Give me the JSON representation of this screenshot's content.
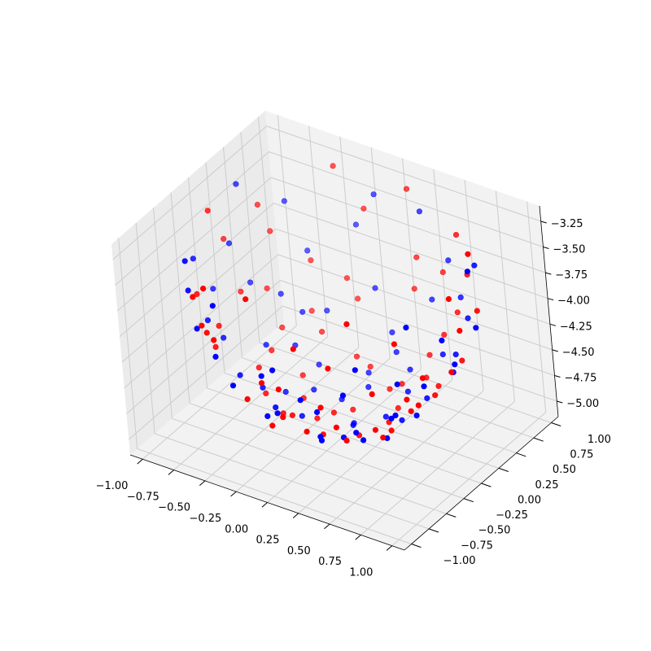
{
  "chart_data": {
    "type": "scatter",
    "title": "",
    "xlabel": "",
    "ylabel": "",
    "zlabel": "",
    "xlim": [
      -1.1,
      1.1
    ],
    "ylim": [
      -1.1,
      1.1
    ],
    "zlim": [
      -5.15,
      -3.1
    ],
    "x_ticks": [
      -1.0,
      -0.75,
      -0.5,
      -0.25,
      0.0,
      0.25,
      0.5,
      0.75,
      1.0
    ],
    "y_ticks": [
      -1.0,
      -0.75,
      -0.5,
      -0.25,
      0.0,
      0.25,
      0.5,
      0.75,
      1.0
    ],
    "z_ticks": [
      -5.0,
      -4.75,
      -4.5,
      -4.25,
      -4.0,
      -3.75,
      -3.5,
      -3.25
    ],
    "x_tick_labels": [
      "−1.00",
      "−0.75",
      "−0.50",
      "−0.25",
      "0.00",
      "0.25",
      "0.50",
      "0.75",
      "1.00"
    ],
    "y_tick_labels": [
      "−1.00",
      "−0.75",
      "−0.50",
      "−0.25",
      "0.00",
      "0.25",
      "0.50",
      "0.75",
      "1.00"
    ],
    "z_tick_labels": [
      "−5.00",
      "−4.75",
      "−4.50",
      "−4.25",
      "−4.00",
      "−3.75",
      "−3.50",
      "−3.25"
    ],
    "grid": true,
    "colors": {
      "pane": "#f2f2f2",
      "pane_side": "#ebebeb",
      "grid": "#cccccc",
      "series_a": "#0000ff",
      "series_b": "#ff0000"
    },
    "series": [
      {
        "color": "#0000ff",
        "points": [
          [
            0.12,
            -0.06,
            -4.96
          ],
          [
            0.46,
            -0.17,
            -4.88
          ],
          [
            -0.31,
            0.15,
            -4.92
          ],
          [
            -0.05,
            0.48,
            -4.84
          ],
          [
            0.33,
            0.37,
            -4.8
          ],
          [
            -0.47,
            -0.27,
            -4.72
          ],
          [
            0.64,
            -0.04,
            -4.66
          ],
          [
            -0.24,
            -0.61,
            -4.7
          ],
          [
            0.21,
            -0.64,
            -4.73
          ],
          [
            -0.66,
            0.13,
            -4.62
          ],
          [
            0.03,
            0.71,
            -4.55
          ],
          [
            0.54,
            0.54,
            -4.45
          ],
          [
            -0.56,
            0.49,
            -4.47
          ],
          [
            0.77,
            0.29,
            -4.38
          ],
          [
            -0.79,
            -0.22,
            -4.4
          ],
          [
            0.69,
            -0.46,
            -4.42
          ],
          [
            -0.39,
            -0.79,
            -4.36
          ],
          [
            0.31,
            -0.83,
            -4.3
          ],
          [
            -0.87,
            0.33,
            -4.22
          ],
          [
            0.29,
            0.86,
            -4.21
          ],
          [
            0.93,
            0.06,
            -4.1
          ],
          [
            -0.94,
            -0.06,
            -4.08
          ],
          [
            0.58,
            0.78,
            -4.02
          ],
          [
            -0.63,
            0.74,
            -4.05
          ],
          [
            0.82,
            -0.55,
            -3.98
          ],
          [
            -0.71,
            -0.69,
            -4.0
          ],
          [
            -0.05,
            -0.95,
            -4.03
          ],
          [
            0.97,
            0.32,
            -3.88
          ],
          [
            -0.98,
            0.27,
            -3.85
          ],
          [
            0.41,
            0.93,
            -3.82
          ],
          [
            -0.34,
            0.95,
            -3.8
          ],
          [
            0.07,
            -0.99,
            -3.9
          ],
          [
            0.63,
            -0.79,
            -3.78
          ],
          [
            -0.83,
            -0.57,
            -3.75
          ],
          [
            0.99,
            -0.18,
            -3.7
          ],
          [
            -0.99,
            -0.21,
            -3.72
          ],
          [
            0.79,
            0.66,
            -3.55
          ],
          [
            -0.76,
            0.7,
            -3.6
          ],
          [
            0.17,
            0.99,
            -3.48
          ],
          [
            -0.19,
            0.98,
            -3.46
          ],
          [
            0.89,
            -0.48,
            -3.44
          ],
          [
            -0.86,
            -0.53,
            -3.5
          ],
          [
            -0.42,
            -0.92,
            -3.52
          ],
          [
            0.96,
            0.29,
            -3.32
          ],
          [
            -0.93,
            0.35,
            -3.3
          ],
          [
            0.06,
            0.05,
            -5.03
          ],
          [
            -0.13,
            0.22,
            -4.98
          ],
          [
            0.26,
            0.16,
            -4.95
          ],
          [
            0.17,
            -0.28,
            -4.93
          ],
          [
            -0.24,
            -0.15,
            -4.97
          ],
          [
            0.38,
            -0.36,
            -4.82
          ],
          [
            -0.38,
            0.36,
            -4.83
          ],
          [
            0.44,
            0.08,
            -4.86
          ],
          [
            -0.42,
            -0.05,
            -4.87
          ],
          [
            0.09,
            -0.46,
            -4.85
          ],
          [
            0.57,
            0.23,
            -4.68
          ],
          [
            -0.52,
            0.29,
            -4.66
          ],
          [
            0.12,
            0.6,
            -4.64
          ],
          [
            -0.18,
            -0.57,
            -4.67
          ],
          [
            0.45,
            -0.56,
            -4.6
          ],
          [
            -0.58,
            -0.38,
            -4.58
          ],
          [
            0.71,
            0.44,
            -4.32
          ],
          [
            -0.7,
            0.45,
            -4.33
          ],
          [
            0.15,
            -0.78,
            -4.28
          ],
          [
            -0.14,
            0.81,
            -4.25
          ],
          [
            0.84,
            -0.23,
            -4.18
          ],
          [
            -0.82,
            -0.36,
            -4.16
          ],
          [
            0.48,
            -0.74,
            -4.12
          ],
          [
            -0.52,
            -0.78,
            -4.14
          ],
          [
            0.73,
            0.61,
            -4.06
          ],
          [
            0.0,
            0.38,
            -4.9
          ],
          [
            -0.31,
            -0.38,
            -4.78
          ],
          [
            0.27,
            0.52,
            -4.7
          ],
          [
            -0.45,
            0.64,
            -4.5
          ],
          [
            0.62,
            -0.29,
            -4.52
          ]
        ]
      },
      {
        "color": "#ff0000",
        "points": [
          [
            -0.08,
            0.02,
            -4.97
          ],
          [
            0.35,
            0.05,
            -4.9
          ],
          [
            -0.22,
            -0.31,
            -4.86
          ],
          [
            0.15,
            0.42,
            -4.88
          ],
          [
            -0.41,
            0.18,
            -4.84
          ],
          [
            0.52,
            -0.32,
            -4.76
          ],
          [
            -0.18,
            0.55,
            -4.78
          ],
          [
            0.43,
            0.47,
            -4.68
          ],
          [
            -0.58,
            -0.12,
            -4.66
          ],
          [
            0.08,
            -0.62,
            -4.71
          ],
          [
            0.67,
            0.18,
            -4.58
          ],
          [
            -0.64,
            0.33,
            -4.56
          ],
          [
            -0.35,
            -0.68,
            -4.54
          ],
          [
            0.39,
            -0.72,
            -4.48
          ],
          [
            0.74,
            -0.27,
            -4.44
          ],
          [
            -0.28,
            0.79,
            -4.4
          ],
          [
            0.49,
            0.66,
            -4.35
          ],
          [
            -0.73,
            -0.43,
            -4.34
          ],
          [
            0.86,
            0.12,
            -4.24
          ],
          [
            -0.85,
            0.16,
            -4.2
          ],
          [
            0.14,
            0.88,
            -4.18
          ],
          [
            -0.09,
            -0.89,
            -4.15
          ],
          [
            0.66,
            -0.64,
            -4.09
          ],
          [
            -0.59,
            0.71,
            -4.11
          ],
          [
            0.91,
            -0.35,
            -4.0
          ],
          [
            -0.91,
            -0.33,
            -3.96
          ],
          [
            0.37,
            0.91,
            -3.94
          ],
          [
            -0.48,
            -0.85,
            -3.92
          ],
          [
            0.97,
            0.1,
            -3.78
          ],
          [
            -0.96,
            0.17,
            -3.74
          ],
          [
            0.7,
            0.7,
            -3.7
          ],
          [
            -0.71,
            -0.71,
            -3.68
          ],
          [
            0.24,
            -0.96,
            -3.64
          ],
          [
            -0.27,
            0.96,
            -3.62
          ],
          [
            0.83,
            -0.56,
            -3.58
          ],
          [
            -0.86,
            0.5,
            -3.56
          ],
          [
            0.55,
            0.84,
            -3.46
          ],
          [
            -0.53,
            -0.85,
            -3.44
          ],
          [
            0.99,
            -0.04,
            -3.38
          ],
          [
            -0.99,
            0.04,
            -3.4
          ],
          [
            0.08,
            0.99,
            -3.3
          ],
          [
            -0.1,
            -0.99,
            -3.28
          ],
          [
            0.92,
            0.38,
            -3.22
          ],
          [
            -0.45,
            0.89,
            -3.24
          ],
          [
            0.6,
            -0.8,
            -3.34
          ],
          [
            -0.02,
            0.18,
            -5.01
          ],
          [
            0.2,
            -0.12,
            -4.99
          ],
          [
            -0.16,
            -0.08,
            -5.0
          ],
          [
            0.28,
            0.3,
            -4.94
          ],
          [
            -0.32,
            0.02,
            -4.93
          ],
          [
            0.04,
            -0.34,
            -4.92
          ],
          [
            0.47,
            -0.12,
            -4.83
          ],
          [
            -0.48,
            -0.22,
            -4.81
          ],
          [
            0.23,
            0.46,
            -4.82
          ],
          [
            -0.05,
            0.51,
            -4.8
          ],
          [
            0.31,
            -0.47,
            -4.79
          ],
          [
            0.6,
            0.35,
            -4.62
          ],
          [
            -0.6,
            0.1,
            -4.63
          ],
          [
            -0.42,
            0.5,
            -4.61
          ],
          [
            0.55,
            -0.46,
            -4.59
          ],
          [
            -0.1,
            -0.63,
            -4.64
          ],
          [
            0.8,
            0.37,
            -4.3
          ],
          [
            -0.78,
            0.4,
            -4.28
          ],
          [
            0.33,
            -0.81,
            -4.26
          ],
          [
            -0.36,
            0.8,
            -4.24
          ],
          [
            0.8,
            -0.41,
            -4.22
          ],
          [
            -0.8,
            -0.25,
            -4.27
          ],
          [
            0.58,
            0.72,
            -4.13
          ],
          [
            -0.7,
            -0.58,
            -4.1
          ],
          [
            0.02,
            -0.85,
            -4.19
          ],
          [
            0.88,
            0.5,
            -3.86
          ],
          [
            -0.82,
            0.57,
            -3.84
          ],
          [
            0.45,
            -0.86,
            -3.8
          ],
          [
            -0.6,
            -0.8,
            -3.86
          ],
          [
            0.15,
            0.93,
            -3.9
          ],
          [
            -0.2,
            -0.62,
            -4.77
          ],
          [
            0.38,
            0.62,
            -4.57
          ],
          [
            -0.55,
            0.6,
            -4.52
          ],
          [
            0.7,
            -0.1,
            -4.5
          ],
          [
            -0.3,
            -0.3,
            -4.88
          ]
        ]
      }
    ]
  }
}
